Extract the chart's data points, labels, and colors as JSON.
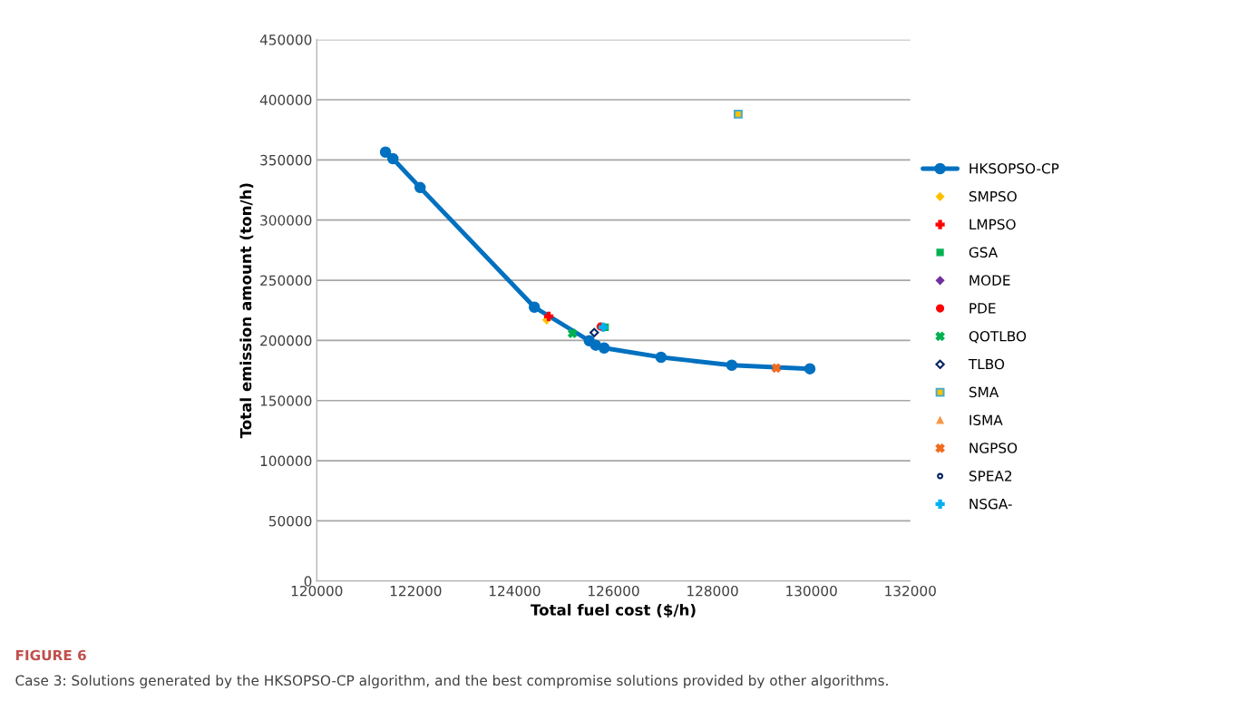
{
  "chart_data": {
    "type": "scatter",
    "xlabel": "Total fuel cost ($/h)",
    "ylabel": "Total emission amount (ton/h)",
    "xlim": [
      120000,
      132000
    ],
    "xticks": [
      120000,
      122000,
      124000,
      126000,
      128000,
      130000,
      132000
    ],
    "ylim": [
      0,
      450000
    ],
    "yticks": [
      0,
      50000,
      100000,
      150000,
      200000,
      250000,
      300000,
      350000,
      400000,
      450000
    ],
    "grid": "y",
    "legend": "right",
    "annotations": [
      "FIGURE 6",
      "Case 3: Solutions generated by the HKSOPSO-CP algorithm, and the best compromise solutions provided by other algorithms."
    ],
    "series": [
      {
        "name": "HKSOPSO-CP",
        "type": "line",
        "marker": "circle",
        "color": "#0070c0",
        "x": [
          121390,
          121540,
          122090,
          124400,
          125510,
          125640,
          125810,
          126960,
          128390,
          129970
        ],
        "values": [
          356500,
          351000,
          327000,
          227600,
          199700,
          196000,
          193700,
          186000,
          179400,
          176400
        ]
      },
      {
        "name": "SMPSO",
        "marker": "diamond",
        "color": "#ffc000",
        "x": [
          124650
        ],
        "values": [
          217000
        ]
      },
      {
        "name": "LMPSO",
        "marker": "plus",
        "color": "#ff0000",
        "x": [
          124690
        ],
        "values": [
          220000
        ]
      },
      {
        "name": "GSA",
        "marker": "square",
        "color": "#00b050",
        "x": [
          125830
        ],
        "values": [
          211000
        ]
      },
      {
        "name": "MODE",
        "marker": "diamond",
        "color": "#7030a0",
        "x": [
          null
        ],
        "values": [
          null
        ]
      },
      {
        "name": "PDE",
        "marker": "circle",
        "color": "#ff0000",
        "x": [
          125740
        ],
        "values": [
          211500
        ]
      },
      {
        "name": "QOTLBO",
        "marker": "cross",
        "color": "#00b050",
        "x": [
          125170
        ],
        "values": [
          205800
        ]
      },
      {
        "name": "TLBO",
        "marker": "diamond_open",
        "color": "#002060",
        "x": [
          125610
        ],
        "values": [
          206500
        ]
      },
      {
        "name": "SMA",
        "marker": "square_edged",
        "color": "#ffc000",
        "x": [
          128520
        ],
        "values": [
          388000
        ]
      },
      {
        "name": "ISMA",
        "marker": "triangle",
        "color": "#f79646",
        "x": [
          null
        ],
        "values": [
          null
        ]
      },
      {
        "name": "NGPSO",
        "marker": "cross",
        "color": "#f26b1d",
        "x": [
          129290
        ],
        "values": [
          177000
        ]
      },
      {
        "name": "SPEA2",
        "marker": "circle_open",
        "color": "#002060",
        "x": [
          null
        ],
        "values": [
          null
        ]
      },
      {
        "name": "NSGA-",
        "marker": "plus",
        "color": "#00b0f0",
        "x": [
          125790
        ],
        "values": [
          211000
        ]
      }
    ]
  }
}
